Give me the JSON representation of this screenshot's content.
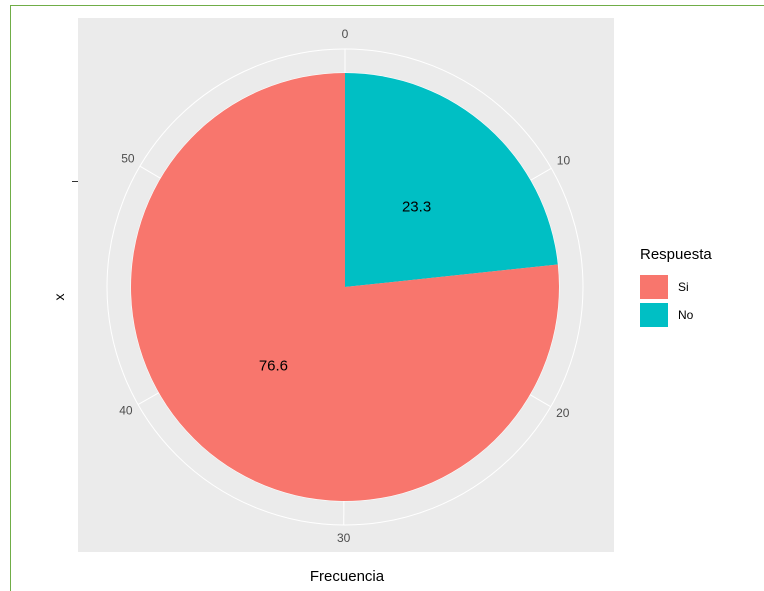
{
  "chart_data": {
    "type": "pie",
    "xlabel": "Frecuencia",
    "ylabel": "x",
    "legend_title": "Respuesta",
    "legend_position": "right",
    "slices": [
      {
        "name": "Si",
        "value": 76.6,
        "label": "76.6",
        "color": "#f8766d"
      },
      {
        "name": "No",
        "value": 23.3,
        "label": "23.3",
        "color": "#00bfc4"
      }
    ],
    "angular_axis": {
      "max": 59.9,
      "ticks": [
        0,
        10,
        20,
        30,
        40,
        50
      ]
    },
    "y_ticks": [
      ""
    ],
    "background_color": "#ebebeb",
    "grid_color": "#ffffff",
    "grid": true
  }
}
